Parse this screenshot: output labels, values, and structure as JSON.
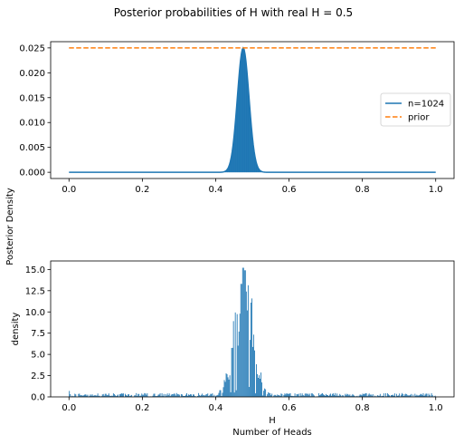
{
  "figure": {
    "suptitle": "Posterior probabilities of H with real H = 0.5",
    "shared_ylabel": "Posterior Density"
  },
  "chart_data": [
    {
      "type": "line",
      "title": "",
      "xlabel": "",
      "ylabel": "",
      "xlim": [
        -0.05,
        1.05
      ],
      "ylim": [
        -0.00125,
        0.02625
      ],
      "xticks": [
        "0.0",
        "0.2",
        "0.4",
        "0.6",
        "0.8",
        "1.0"
      ],
      "yticks": [
        "0.000",
        "0.005",
        "0.010",
        "0.015",
        "0.020",
        "0.025"
      ],
      "grid": false,
      "legend": "center-right",
      "series": [
        {
          "name": "n=1024",
          "style": "solid",
          "color": "#1f77b4",
          "distribution": {
            "shape": "gaussian",
            "mean": 0.475,
            "sd": 0.0158,
            "peak": 0.025,
            "x_start": 0.0,
            "x_end": 1.0
          }
        },
        {
          "name": "prior",
          "style": "dashed",
          "color": "#ff7f0e",
          "x": [
            0.0,
            1.0
          ],
          "y": [
            0.025,
            0.025
          ]
        }
      ]
    },
    {
      "type": "bar",
      "title": "",
      "xlabel": "H",
      "xlabel2": "Number of Heads",
      "ylabel": "density",
      "xlim": [
        -0.05,
        1.05
      ],
      "ylim": [
        0,
        16
      ],
      "xticks": [
        "0.0",
        "0.2",
        "0.4",
        "0.6",
        "0.8",
        "1.0"
      ],
      "yticks": [
        "0.0",
        "2.5",
        "5.0",
        "7.5",
        "10.0",
        "12.5",
        "15.0"
      ],
      "grid": false,
      "color": "#1f77b4",
      "histogram": {
        "x_start": 0.0,
        "x_end": 1.0,
        "peak_center": 0.475,
        "peak_sd": 0.024,
        "peak_height": 15.2,
        "background_level": 0.25,
        "max_bin_value": 15.2,
        "highlights": [
          {
            "x": 0.473,
            "value": 15.2
          },
          {
            "x": 0.479,
            "value": 14.9
          },
          {
            "x": 0.469,
            "value": 13.3
          },
          {
            "x": 0.482,
            "value": 12.4
          },
          {
            "x": 0.0,
            "value": 0.7
          }
        ]
      }
    }
  ]
}
